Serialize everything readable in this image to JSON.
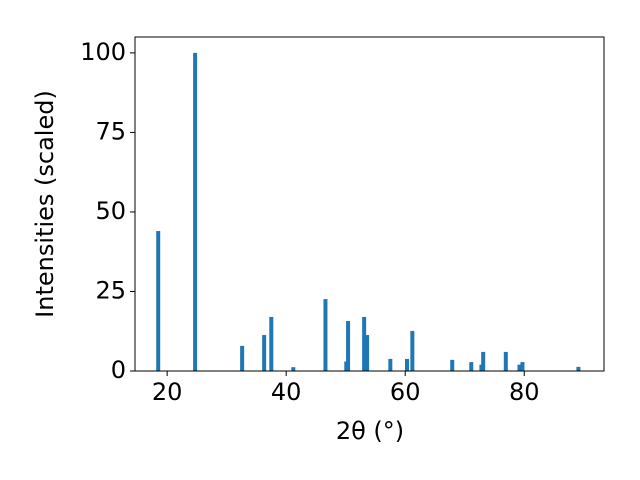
{
  "chart_data": {
    "type": "bar",
    "x": [
      18.5,
      24.7,
      32.6,
      36.3,
      37.5,
      41.2,
      46.6,
      50.1,
      50.4,
      53.1,
      53.6,
      57.5,
      60.3,
      61.2,
      67.9,
      71.1,
      72.8,
      73.1,
      76.9,
      79.2,
      79.7,
      89.1
    ],
    "values": [
      44,
      100,
      7.9,
      11.3,
      17,
      1.2,
      22.6,
      3,
      15.7,
      17,
      11.3,
      3.8,
      3.8,
      12.6,
      3.5,
      2.8,
      2,
      6,
      6,
      2,
      2.8,
      1.3
    ],
    "color": "#1f77b4",
    "xlabel": "2θ (°)",
    "ylabel": "Intensities (scaled)",
    "xlim": [
      14.6,
      93.4
    ],
    "ylim": [
      0,
      105
    ],
    "xticks": [
      20,
      40,
      60,
      80
    ],
    "yticks": [
      0,
      25,
      50,
      75,
      100
    ]
  }
}
